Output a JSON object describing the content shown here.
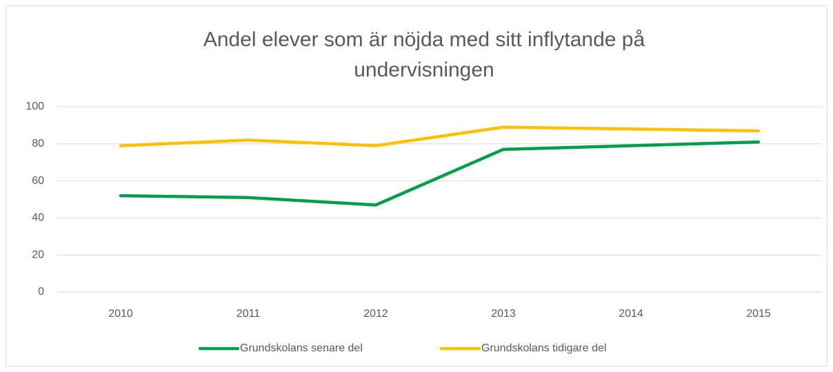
{
  "chart_data": {
    "type": "line",
    "title": "Andel elever som är nöjda med sitt inflytande på undervisningen",
    "categories": [
      "2010",
      "2011",
      "2012",
      "2013",
      "2014",
      "2015"
    ],
    "series": [
      {
        "name": "Grundskolans senare del",
        "color": "#00a04a",
        "values": [
          52,
          51,
          47,
          77,
          79,
          81
        ]
      },
      {
        "name": "Grundskolans tidigare del",
        "color": "#ffc000",
        "values": [
          79,
          82,
          79,
          89,
          88,
          87
        ]
      }
    ],
    "ylim": [
      0,
      100
    ],
    "yticks": [
      0,
      20,
      40,
      60,
      80,
      100
    ],
    "grid": true,
    "legend": "bottom"
  }
}
